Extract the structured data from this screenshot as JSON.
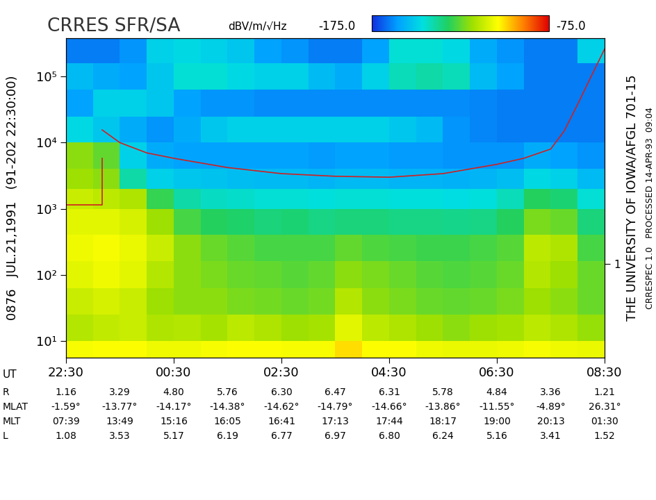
{
  "chart_data": {
    "type": "heatmap",
    "title": "CRRES SFR/SA",
    "texts": {
      "left": "0876   JUL.21,1991   (91-202 22:30:00)",
      "right": "THE UNIVERSITY OF IOWA/AFGL 701-15",
      "right2": "CRRESPEC 1.0   PROCESSED 14-APR-93  09:04"
    },
    "log": "y",
    "xlim": [
      0,
      10
    ],
    "xticks": [
      {
        "value": 0,
        "label": "22:30"
      },
      {
        "value": 2,
        "label": "00:30"
      },
      {
        "value": 4,
        "label": "02:30"
      },
      {
        "value": 6,
        "label": "04:30"
      },
      {
        "value": 8,
        "label": "06:30"
      },
      {
        "value": 10,
        "label": "08:30"
      }
    ],
    "ylim": [
      5.6,
      380000
    ],
    "yticks": [
      {
        "value": 10,
        "label": "10¹"
      },
      {
        "value": 100,
        "label": "10²"
      },
      {
        "value": 1000,
        "label": "10³"
      },
      {
        "value": 10000,
        "label": "10⁴"
      },
      {
        "value": 100000,
        "label": "10⁵"
      }
    ],
    "y2lim": [
      0.0385,
      2570
    ],
    "y2ticks": [
      1
    ],
    "x_edges": [
      0,
      0.5,
      1,
      1.5,
      2,
      2.5,
      3,
      3.5,
      4,
      4.5,
      5,
      5.5,
      6,
      6.5,
      7,
      7.5,
      8,
      8.5,
      9,
      9.5,
      10
    ],
    "y_edges": [
      5.6,
      10,
      25,
      63,
      160,
      400,
      1000,
      2000,
      4000,
      10000,
      25000,
      63000,
      160000,
      380000
    ],
    "cells": [
      [
        -105,
        -104,
        -104,
        -106,
        -106,
        -105,
        -104,
        -104,
        -105,
        -105,
        -100,
        -104,
        -104,
        -106,
        -107,
        -107,
        -106,
        -105,
        -106,
        -107
      ],
      [
        -115,
        -113,
        -112,
        -116,
        -115,
        -117,
        -114,
        -116,
        -118,
        -117,
        -108,
        -114,
        -116,
        -118,
        -120,
        -118,
        -117,
        -114,
        -116,
        -119
      ],
      [
        -112,
        -110,
        -112,
        -118,
        -120,
        -120,
        -122,
        -123,
        -124,
        -123,
        -115,
        -120,
        -122,
        -124,
        -125,
        -124,
        -122,
        -118,
        -120,
        -124
      ],
      [
        -108,
        -106,
        -108,
        -115,
        -120,
        -122,
        -124,
        -125,
        -126,
        -125,
        -120,
        -122,
        -124,
        -126,
        -127,
        -126,
        -124,
        -115,
        -118,
        -124
      ],
      [
        -106,
        -105,
        -107,
        -112,
        -120,
        -124,
        -126,
        -128,
        -128,
        -128,
        -125,
        -127,
        -128,
        -129,
        -129,
        -128,
        -126,
        -114,
        -116,
        -128
      ],
      [
        -108,
        -108,
        -110,
        -118,
        -128,
        -132,
        -133,
        -135,
        -134,
        -136,
        -135,
        -135,
        -136,
        -136,
        -137,
        -136,
        -132,
        -122,
        -124,
        -135
      ],
      [
        -112,
        -114,
        -116,
        -130,
        -140,
        -143,
        -144,
        -145,
        -145,
        -146,
        -145,
        -145,
        -146,
        -146,
        -147,
        -146,
        -142,
        -132,
        -134,
        -145
      ],
      [
        -118,
        -120,
        -140,
        -150,
        -152,
        -153,
        -154,
        -155,
        -155,
        -156,
        -155,
        -155,
        -156,
        -156,
        -157,
        -156,
        -154,
        -148,
        -150,
        -155
      ],
      [
        -120,
        -125,
        -150,
        -158,
        -160,
        -160,
        -160,
        -160,
        -160,
        -161,
        -160,
        -160,
        -161,
        -161,
        -162,
        -162,
        -162,
        -158,
        -160,
        -162
      ],
      [
        -148,
        -152,
        -158,
        -162,
        -158,
        -152,
        -150,
        -150,
        -150,
        -150,
        -150,
        -150,
        -152,
        -155,
        -162,
        -164,
        -165,
        -165,
        -165,
        -165
      ],
      [
        -160,
        -150,
        -150,
        -152,
        -160,
        -162,
        -162,
        -163,
        -163,
        -163,
        -163,
        -163,
        -163,
        -163,
        -163,
        -164,
        -165,
        -165,
        -165,
        -165
      ],
      [
        -155,
        -158,
        -160,
        -152,
        -145,
        -145,
        -148,
        -150,
        -150,
        -155,
        -158,
        -150,
        -142,
        -140,
        -142,
        -155,
        -160,
        -165,
        -165,
        -165
      ],
      [
        -165,
        -165,
        -162,
        -150,
        -148,
        -150,
        -152,
        -160,
        -162,
        -165,
        -165,
        -160,
        -145,
        -145,
        -148,
        -158,
        -162,
        -165,
        -165,
        -150
      ]
    ],
    "colorbar": {
      "range": [
        -175,
        -75
      ],
      "labels": [
        "-175.0",
        "-75.0"
      ],
      "unit": "dBV/m/√Hz"
    },
    "series": [
      {
        "type": "line",
        "color": "#d02020",
        "x": [
          0.67,
          1.0,
          1.5,
          2.0,
          3.0,
          4.0,
          5.0,
          6.0,
          7.0,
          8.0,
          8.5,
          9.0,
          9.25,
          9.5,
          9.75,
          10.0
        ],
        "values": [
          15600,
          10000,
          7000,
          5800,
          4200,
          3400,
          3100,
          3000,
          3400,
          4700,
          5800,
          8000,
          15000,
          38000,
          100000,
          260000
        ]
      },
      {
        "type": "line",
        "color": "#d02020",
        "x": [
          0,
          0.67,
          0.67
        ],
        "values": [
          1150,
          1150,
          5800
        ]
      }
    ],
    "ephemeris": {
      "x_label": "UT",
      "x": [
        0,
        1,
        2,
        3,
        4,
        5,
        6,
        7,
        8,
        9,
        10
      ],
      "rows": [
        {
          "label": "R",
          "values": [
            "1.16",
            "3.29",
            "4.80",
            "5.76",
            "6.30",
            "6.47",
            "6.31",
            "5.78",
            "4.84",
            "3.36",
            "1.21"
          ]
        },
        {
          "label": "MLAT",
          "values": [
            "-1.59°",
            "-13.77°",
            "-14.17°",
            "-14.38°",
            "-14.62°",
            "-14.79°",
            "-14.66°",
            "-13.86°",
            "-11.55°",
            "-4.89°",
            "26.31°"
          ]
        },
        {
          "label": "MLT",
          "values": [
            "07:39",
            "13:49",
            "15:16",
            "16:05",
            "16:41",
            "17:13",
            "17:44",
            "18:17",
            "19:00",
            "20:13",
            "01:30"
          ]
        },
        {
          "label": "L",
          "values": [
            "1.08",
            "3.53",
            "5.17",
            "6.19",
            "6.77",
            "6.97",
            "6.80",
            "6.24",
            "5.16",
            "3.41",
            "1.52"
          ]
        }
      ]
    }
  }
}
